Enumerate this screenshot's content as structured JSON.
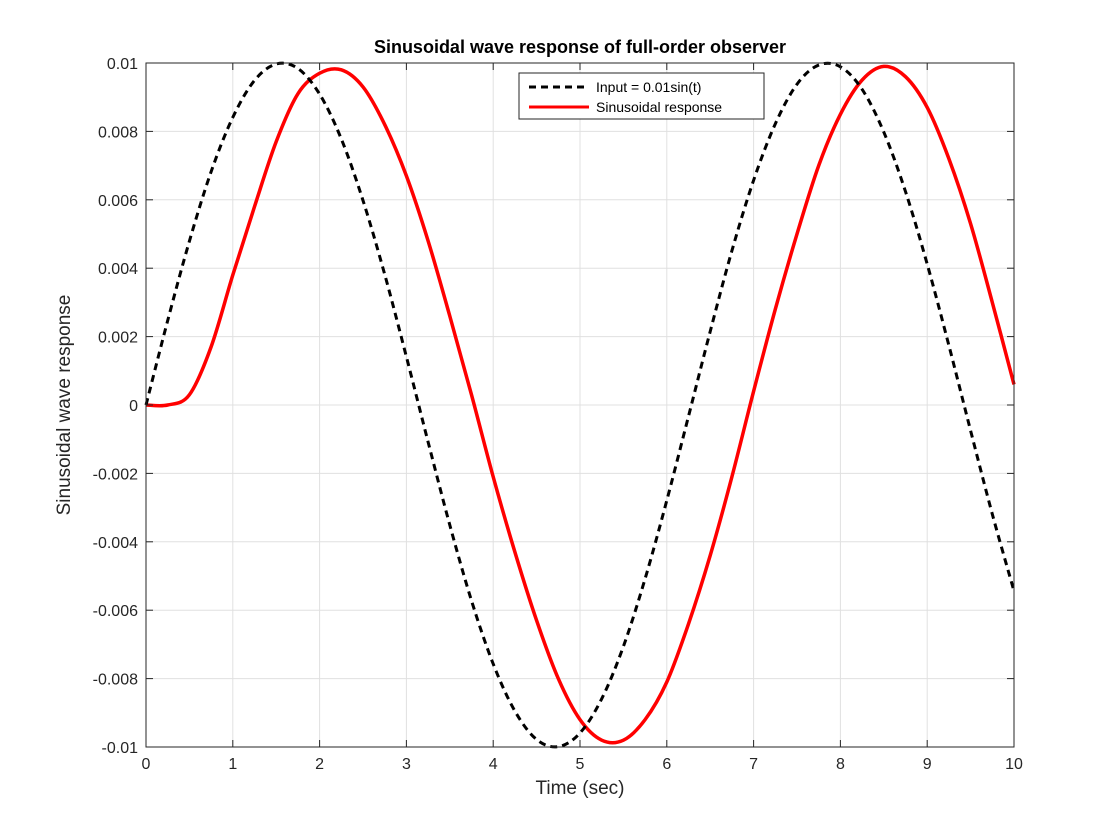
{
  "chart_data": {
    "type": "line",
    "title": "Sinusoidal wave response of full-order observer",
    "xlabel": "Time (sec)",
    "ylabel": "Sinusoidal wave response",
    "xlim": [
      0,
      10
    ],
    "ylim": [
      -0.01,
      0.01
    ],
    "xticks": [
      0,
      1,
      2,
      3,
      4,
      5,
      6,
      7,
      8,
      9,
      10
    ],
    "xtick_labels": [
      "0",
      "1",
      "2",
      "3",
      "4",
      "5",
      "6",
      "7",
      "8",
      "9",
      "10"
    ],
    "yticks": [
      -0.01,
      -0.008,
      -0.006,
      -0.004,
      -0.002,
      0,
      0.002,
      0.004,
      0.006,
      0.008,
      0.01
    ],
    "ytick_labels": [
      "-0.01",
      "-0.008",
      "-0.006",
      "-0.004",
      "-0.002",
      "0",
      "0.002",
      "0.004",
      "0.006",
      "0.008",
      "0.01"
    ],
    "grid": true,
    "legend_position": "top-center",
    "x": [
      0,
      0.25,
      0.5,
      0.75,
      1,
      1.25,
      1.5,
      1.75,
      2,
      2.25,
      2.5,
      2.75,
      3,
      3.25,
      3.5,
      3.75,
      4,
      4.25,
      4.5,
      4.75,
      5,
      5.25,
      5.5,
      5.75,
      6,
      6.25,
      6.5,
      6.75,
      7,
      7.25,
      7.5,
      7.75,
      8,
      8.25,
      8.5,
      8.75,
      9,
      9.25,
      9.5,
      9.75,
      10
    ],
    "series": [
      {
        "name": "Input = 0.01sin(t)",
        "color": "#000000",
        "style": "dashed",
        "values": [
          0,
          0.00247,
          0.00479,
          0.00682,
          0.00841,
          0.00949,
          0.00997,
          0.00984,
          0.00909,
          0.00778,
          0.00598,
          0.00382,
          0.00141,
          -0.00108,
          -0.00351,
          -0.00572,
          -0.00757,
          -0.00895,
          -0.00978,
          -0.00999,
          -0.00959,
          -0.00859,
          -0.00706,
          -0.00508,
          -0.00279,
          -0.00033,
          0.00215,
          0.00451,
          0.00657,
          0.00822,
          0.00938,
          0.00994,
          0.00989,
          0.00923,
          0.00798,
          0.00624,
          0.00412,
          0.00174,
          -0.00075,
          -0.00319,
          -0.00544
        ]
      },
      {
        "name": "Sinusoidal response",
        "color": "#ff0000",
        "style": "solid",
        "values": [
          0,
          0,
          0.0003,
          0.0017,
          0.0038,
          0.0058,
          0.0077,
          0.0091,
          0.0097,
          0.0098,
          0.0093,
          0.0082,
          0.0067,
          0.0048,
          0.0026,
          0.0003,
          -0.0021,
          -0.0043,
          -0.0063,
          -0.008,
          -0.0092,
          -0.0098,
          -0.0098,
          -0.0092,
          -0.0081,
          -0.0064,
          -0.0044,
          -0.0021,
          0.0004,
          0.0028,
          0.005,
          0.007,
          0.0085,
          0.0095,
          0.0099,
          0.0096,
          0.0087,
          0.0072,
          0.0053,
          0.003,
          0.0006
        ]
      }
    ]
  }
}
